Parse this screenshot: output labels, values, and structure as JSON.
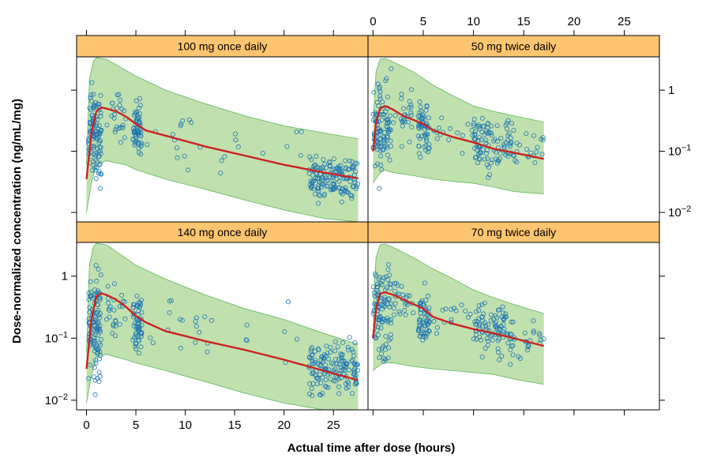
{
  "chart_data": {
    "type": "scatter",
    "xlabel": "Actual time after dose (hours)",
    "ylabel": "Dose-normalized concentration (ng/mL/mg)",
    "y_scale": "log10",
    "ylim": [
      0.007,
      3.5
    ],
    "yticks": [
      {
        "value": 0.01,
        "base": "10",
        "exp": "−2"
      },
      {
        "value": 0.1,
        "base": "10",
        "exp": "−1"
      },
      {
        "value": 1,
        "base": "1",
        "exp": ""
      }
    ],
    "xticks_once_daily": [
      "0",
      "5",
      "10",
      "15",
      "20",
      "25"
    ],
    "xticks_twice_daily": [
      "0",
      "5",
      "10",
      "15",
      "20",
      "25"
    ],
    "xlim_once_daily": [
      -1,
      28.5
    ],
    "xlim_twice_daily": [
      -0.5,
      28.5
    ],
    "grid": false,
    "series_colors": {
      "points": "#1f77b4",
      "median": "#cc2222",
      "band": "#b5dba0",
      "band_edge": "#5cb85c",
      "strip": "#fdc56f"
    },
    "panels": [
      {
        "label": "100 mg once daily",
        "regimen": "once",
        "median": [
          [
            0,
            0.035
          ],
          [
            0.5,
            0.2
          ],
          [
            1,
            0.45
          ],
          [
            1.5,
            0.52
          ],
          [
            2,
            0.5
          ],
          [
            3,
            0.45
          ],
          [
            4,
            0.37
          ],
          [
            5,
            0.28
          ],
          [
            6,
            0.22
          ],
          [
            8,
            0.18
          ],
          [
            12,
            0.12
          ],
          [
            16,
            0.085
          ],
          [
            20,
            0.06
          ],
          [
            24,
            0.045
          ],
          [
            27.5,
            0.036
          ]
        ],
        "band_upper": [
          [
            0,
            0.06
          ],
          [
            0.3,
            1.5
          ],
          [
            0.7,
            3.0
          ],
          [
            1,
            3.4
          ],
          [
            2,
            3.2
          ],
          [
            3,
            2.6
          ],
          [
            5,
            1.7
          ],
          [
            8,
            1.0
          ],
          [
            12,
            0.6
          ],
          [
            16,
            0.38
          ],
          [
            20,
            0.26
          ],
          [
            24,
            0.2
          ],
          [
            27.5,
            0.16
          ]
        ],
        "band_lower": [
          [
            0,
            0.01
          ],
          [
            0.5,
            0.03
          ],
          [
            1,
            0.06
          ],
          [
            2,
            0.07
          ],
          [
            4,
            0.06
          ],
          [
            5,
            0.05
          ],
          [
            8,
            0.035
          ],
          [
            12,
            0.024
          ],
          [
            16,
            0.016
          ],
          [
            20,
            0.011
          ],
          [
            24,
            0.008
          ],
          [
            27.5,
            0.007
          ]
        ],
        "point_clusters": [
          {
            "x": [
              0.2,
              1.5
            ],
            "y": [
              0.012,
              3.0
            ],
            "n": 110
          },
          {
            "x": [
              2,
              4
            ],
            "y": [
              0.1,
              1.2
            ],
            "n": 25
          },
          {
            "x": [
              4.7,
              5.6
            ],
            "y": [
              0.05,
              0.9
            ],
            "n": 60
          },
          {
            "x": [
              6,
              22
            ],
            "y": [
              0.03,
              0.5
            ],
            "n": 25
          },
          {
            "x": [
              22.5,
              27.5
            ],
            "y": [
              0.011,
              0.13
            ],
            "n": 150
          }
        ]
      },
      {
        "label": "50 mg twice daily",
        "regimen": "twice",
        "median": [
          [
            0,
            0.1
          ],
          [
            0.3,
            0.3
          ],
          [
            0.7,
            0.5
          ],
          [
            1.2,
            0.55
          ],
          [
            2,
            0.48
          ],
          [
            3,
            0.38
          ],
          [
            5,
            0.28
          ],
          [
            6,
            0.22
          ],
          [
            8,
            0.17
          ],
          [
            10,
            0.14
          ],
          [
            12,
            0.11
          ],
          [
            14,
            0.095
          ],
          [
            17,
            0.075
          ]
        ],
        "band_upper": [
          [
            0,
            0.3
          ],
          [
            0.3,
            2.0
          ],
          [
            0.7,
            3.2
          ],
          [
            1.2,
            3.3
          ],
          [
            2,
            2.9
          ],
          [
            4,
            2.0
          ],
          [
            6,
            1.2
          ],
          [
            8,
            0.8
          ],
          [
            10,
            0.55
          ],
          [
            12,
            0.45
          ],
          [
            14,
            0.38
          ],
          [
            17,
            0.3
          ]
        ],
        "band_lower": [
          [
            0,
            0.03
          ],
          [
            0.5,
            0.04
          ],
          [
            1,
            0.05
          ],
          [
            2,
            0.045
          ],
          [
            4,
            0.04
          ],
          [
            6,
            0.035
          ],
          [
            8,
            0.032
          ],
          [
            10,
            0.03
          ],
          [
            12,
            0.026
          ],
          [
            14,
            0.022
          ],
          [
            17,
            0.02
          ]
        ],
        "point_clusters": [
          {
            "x": [
              0,
              1.8
            ],
            "y": [
              0.02,
              3.2
            ],
            "n": 100
          },
          {
            "x": [
              2,
              4
            ],
            "y": [
              0.08,
              1.4
            ],
            "n": 25
          },
          {
            "x": [
              4.5,
              5.6
            ],
            "y": [
              0.05,
              1.0
            ],
            "n": 60
          },
          {
            "x": [
              6,
              10
            ],
            "y": [
              0.08,
              0.5
            ],
            "n": 15
          },
          {
            "x": [
              10,
              14
            ],
            "y": [
              0.03,
              0.6
            ],
            "n": 100
          },
          {
            "x": [
              14,
              17
            ],
            "y": [
              0.04,
              0.35
            ],
            "n": 20
          }
        ]
      },
      {
        "label": "140 mg once daily",
        "regimen": "once",
        "median": [
          [
            0,
            0.032
          ],
          [
            0.5,
            0.2
          ],
          [
            1,
            0.47
          ],
          [
            1.5,
            0.53
          ],
          [
            2,
            0.5
          ],
          [
            3,
            0.42
          ],
          [
            4,
            0.32
          ],
          [
            5,
            0.23
          ],
          [
            6,
            0.18
          ],
          [
            8,
            0.13
          ],
          [
            12,
            0.09
          ],
          [
            16,
            0.065
          ],
          [
            20,
            0.045
          ],
          [
            24,
            0.03
          ],
          [
            27.5,
            0.021
          ]
        ],
        "band_upper": [
          [
            0,
            0.06
          ],
          [
            0.3,
            1.5
          ],
          [
            0.7,
            3.0
          ],
          [
            1,
            3.4
          ],
          [
            2,
            3.2
          ],
          [
            3,
            2.5
          ],
          [
            5,
            1.5
          ],
          [
            8,
            0.9
          ],
          [
            12,
            0.5
          ],
          [
            16,
            0.3
          ],
          [
            20,
            0.2
          ],
          [
            24,
            0.12
          ],
          [
            27.5,
            0.08
          ]
        ],
        "band_lower": [
          [
            0,
            0.009
          ],
          [
            0.5,
            0.025
          ],
          [
            1,
            0.05
          ],
          [
            2,
            0.055
          ],
          [
            4,
            0.045
          ],
          [
            5,
            0.04
          ],
          [
            8,
            0.03
          ],
          [
            12,
            0.02
          ],
          [
            16,
            0.013
          ],
          [
            20,
            0.009
          ],
          [
            24,
            0.007
          ],
          [
            27.5,
            0.007
          ]
        ],
        "point_clusters": [
          {
            "x": [
              0.2,
              1.5
            ],
            "y": [
              0.009,
              3.0
            ],
            "n": 110
          },
          {
            "x": [
              2,
              4
            ],
            "y": [
              0.07,
              1.2
            ],
            "n": 25
          },
          {
            "x": [
              4.7,
              5.6
            ],
            "y": [
              0.03,
              1.0
            ],
            "n": 60
          },
          {
            "x": [
              6,
              22
            ],
            "y": [
              0.02,
              0.8
            ],
            "n": 25
          },
          {
            "x": [
              22.5,
              27.5
            ],
            "y": [
              0.008,
              0.13
            ],
            "n": 150
          }
        ]
      },
      {
        "label": "70 mg twice daily",
        "regimen": "twice",
        "median": [
          [
            0,
            0.1
          ],
          [
            0.3,
            0.3
          ],
          [
            0.7,
            0.52
          ],
          [
            1.2,
            0.55
          ],
          [
            2,
            0.5
          ],
          [
            3,
            0.42
          ],
          [
            5,
            0.3
          ],
          [
            6,
            0.22
          ],
          [
            8,
            0.17
          ],
          [
            10,
            0.14
          ],
          [
            12,
            0.12
          ],
          [
            14,
            0.1
          ],
          [
            17,
            0.075
          ]
        ],
        "band_upper": [
          [
            0,
            0.3
          ],
          [
            0.3,
            2.0
          ],
          [
            0.7,
            3.2
          ],
          [
            1.2,
            3.3
          ],
          [
            2,
            2.9
          ],
          [
            4,
            2.0
          ],
          [
            6,
            1.3
          ],
          [
            8,
            0.9
          ],
          [
            10,
            0.6
          ],
          [
            12,
            0.45
          ],
          [
            14,
            0.35
          ],
          [
            17,
            0.25
          ]
        ],
        "band_lower": [
          [
            0,
            0.03
          ],
          [
            0.5,
            0.035
          ],
          [
            1,
            0.04
          ],
          [
            2,
            0.04
          ],
          [
            4,
            0.035
          ],
          [
            6,
            0.032
          ],
          [
            8,
            0.03
          ],
          [
            10,
            0.028
          ],
          [
            12,
            0.026
          ],
          [
            14,
            0.022
          ],
          [
            17,
            0.018
          ]
        ],
        "point_clusters": [
          {
            "x": [
              0,
              1.8
            ],
            "y": [
              0.02,
              3.2
            ],
            "n": 100
          },
          {
            "x": [
              2,
              4
            ],
            "y": [
              0.1,
              1.4
            ],
            "n": 25
          },
          {
            "x": [
              4.5,
              5.6
            ],
            "y": [
              0.05,
              1.0
            ],
            "n": 60
          },
          {
            "x": [
              6,
              10
            ],
            "y": [
              0.08,
              0.5
            ],
            "n": 15
          },
          {
            "x": [
              10,
              14
            ],
            "y": [
              0.03,
              0.6
            ],
            "n": 100
          },
          {
            "x": [
              14,
              17
            ],
            "y": [
              0.04,
              0.3
            ],
            "n": 20
          }
        ]
      }
    ]
  }
}
